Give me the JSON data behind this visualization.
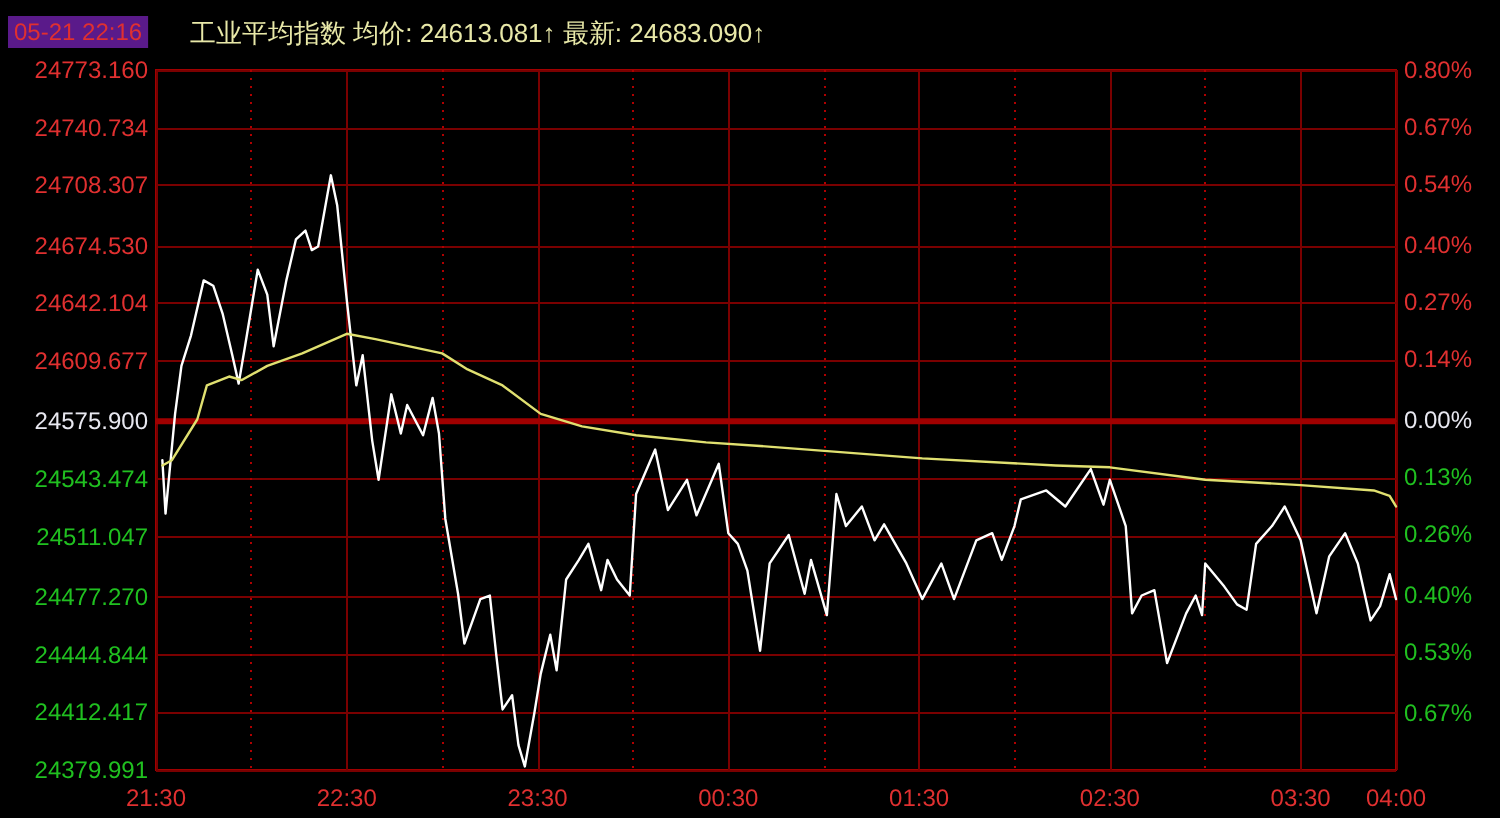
{
  "chart_data": {
    "type": "line",
    "title": "工业平均指数 均价: 24613.081↑ 最新: 24683.090↑",
    "annotations": [
      "05-21 22:16"
    ],
    "grid": true,
    "xlim": [
      "--05-21T21:30",
      "--05-22T04:00"
    ],
    "xticks": [
      {
        "value": "--05-21T21:30",
        "label": "21:30"
      },
      {
        "value": "--05-21T22:00",
        "label": null
      },
      {
        "value": "--05-21T22:30",
        "label": "22:30"
      },
      {
        "value": "--05-21T23:00",
        "label": null
      },
      {
        "value": "--05-21T23:30",
        "label": "23:30"
      },
      {
        "value": "--05-22T00:00",
        "label": null
      },
      {
        "value": "--05-22T00:30",
        "label": "00:30"
      },
      {
        "value": "--05-22T01:00",
        "label": null
      },
      {
        "value": "--05-22T01:30",
        "label": "01:30"
      },
      {
        "value": "--05-22T02:00",
        "label": null
      },
      {
        "value": "--05-22T02:30",
        "label": "02:30"
      },
      {
        "value": "--05-22T03:00",
        "label": null
      },
      {
        "value": "--05-22T03:30",
        "label": "03:30"
      },
      {
        "value": "--05-22T04:00",
        "label": "04:00"
      }
    ],
    "ylim": [
      24379.991,
      24773.16
    ],
    "yticks": [
      {
        "value": 24773.16,
        "label": "24773.160"
      },
      {
        "value": 24740.734,
        "label": "24740.734"
      },
      {
        "value": 24708.307,
        "label": "24708.307"
      },
      {
        "value": 24674.53,
        "label": "24674.530"
      },
      {
        "value": 24642.104,
        "label": "24642.104"
      },
      {
        "value": 24609.677,
        "label": "24609.677"
      },
      {
        "value": 24575.9,
        "label": "24575.900"
      },
      {
        "value": 24543.474,
        "label": "24543.474"
      },
      {
        "value": 24511.047,
        "label": "24511.047"
      },
      {
        "value": 24477.27,
        "label": "24477.270"
      },
      {
        "value": 24444.844,
        "label": "24444.844"
      },
      {
        "value": 24412.417,
        "label": "24412.417"
      },
      {
        "value": 24379.991,
        "label": "24379.991"
      }
    ],
    "y2lim": [
      -0.8,
      0.8
    ],
    "y2ticks": [
      {
        "value": 0.8,
        "label": "0.80%"
      },
      {
        "value": 0.67,
        "label": "0.67%"
      },
      {
        "value": 0.54,
        "label": "0.54%"
      },
      {
        "value": 0.4,
        "label": "0.40%"
      },
      {
        "value": 0.27,
        "label": "0.27%"
      },
      {
        "value": 0.14,
        "label": "0.14%"
      },
      {
        "value": 0,
        "label": "0.00%"
      },
      {
        "value": -0.13,
        "label": "0.13%"
      },
      {
        "value": -0.26,
        "label": "0.26%"
      },
      {
        "value": -0.4,
        "label": "0.40%"
      },
      {
        "value": -0.53,
        "label": "0.53%"
      },
      {
        "value": -0.67,
        "label": "0.67%"
      }
    ],
    "ref_lines": [
      {
        "axis": "y",
        "value": 24575.9,
        "color": "#a00000"
      }
    ],
    "series": [
      {
        "color": "#ffffff",
        "x": [
          "--05-21T21:32",
          "--05-21T21:33",
          "--05-21T21:36",
          "--05-21T21:38",
          "--05-21T21:41",
          "--05-21T21:45",
          "--05-21T21:48",
          "--05-21T21:51",
          "--05-21T21:54",
          "--05-21T21:56",
          "--05-21T21:58",
          "--05-21T22:02",
          "--05-21T22:05",
          "--05-21T22:07",
          "--05-21T22:11",
          "--05-21T22:14",
          "--05-21T22:17",
          "--05-21T22:19",
          "--05-21T22:21",
          "--05-21T22:25",
          "--05-21T22:27",
          "--05-21T22:30",
          "--05-21T22:33",
          "--05-21T22:35",
          "--05-21T22:38",
          "--05-21T22:40",
          "--05-21T22:44",
          "--05-21T22:47",
          "--05-21T22:49",
          "--05-21T22:54",
          "--05-21T22:57",
          "--05-21T22:59",
          "--05-21T23:01",
          "--05-21T23:05",
          "--05-21T23:07",
          "--05-21T23:12",
          "--05-21T23:15",
          "--05-21T23:17",
          "--05-21T23:19",
          "--05-21T23:22",
          "--05-21T23:24",
          "--05-21T23:26",
          "--05-21T23:29",
          "--05-21T23:31",
          "--05-21T23:34",
          "--05-21T23:36",
          "--05-21T23:39",
          "--05-21T23:43",
          "--05-21T23:46",
          "--05-21T23:50",
          "--05-21T23:52",
          "--05-21T23:55",
          "--05-21T23:59",
          "--05-22T00:01",
          "--05-22T00:07",
          "--05-22T00:11",
          "--05-22T00:17",
          "--05-22T00:20",
          "--05-22T00:27",
          "--05-22T00:30",
          "--05-22T00:33",
          "--05-22T00:36",
          "--05-22T00:40",
          "--05-22T00:43",
          "--05-22T00:49",
          "--05-22T00:54",
          "--05-22T00:56",
          "--05-22T01:01",
          "--05-22T01:04",
          "--05-22T01:07",
          "--05-22T01:12",
          "--05-22T01:16",
          "--05-22T01:19",
          "--05-22T01:26",
          "--05-22T01:31",
          "--05-22T01:37",
          "--05-22T01:41",
          "--05-22T01:48",
          "--05-22T01:53",
          "--05-22T01:56",
          "--05-22T02:00",
          "--05-22T02:02",
          "--05-22T02:10",
          "--05-22T02:16",
          "--05-22T02:24",
          "--05-22T02:28",
          "--05-22T02:30",
          "--05-22T02:35",
          "--05-22T02:37",
          "--05-22T02:40",
          "--05-22T02:44",
          "--05-22T02:48",
          "--05-22T02:54",
          "--05-22T02:57",
          "--05-22T02:59",
          "--05-22T03:00",
          "--05-22T03:06",
          "--05-22T03:10",
          "--05-22T03:13",
          "--05-22T03:16",
          "--05-22T03:21",
          "--05-22T03:25",
          "--05-22T03:30",
          "--05-22T03:35",
          "--05-22T03:39",
          "--05-22T03:44",
          "--05-22T03:48",
          "--05-22T03:52",
          "--05-22T03:55",
          "--05-22T03:58",
          "--05-22T04:00"
        ],
        "values": [
          24554,
          24524,
          24580,
          24607,
          24624,
          24655,
          24652,
          24636,
          24613,
          24597,
          24618,
          24661,
          24647,
          24618,
          24655,
          24678,
          24683,
          24672,
          24674,
          24714,
          24697,
          24644,
          24596,
          24613,
          24565,
          24543,
          24591,
          24569,
          24585,
          24568,
          24589,
          24569,
          24521,
          24479,
          24451,
          24476,
          24478,
          24445,
          24414,
          24422,
          24394,
          24382,
          24412,
          24434,
          24456,
          24436,
          24487,
          24498,
          24507,
          24481,
          24498,
          24487,
          24478,
          24535,
          24560,
          24526,
          24543,
          24523,
          24552,
          24513,
          24507,
          24492,
          24447,
          24496,
          24512,
          24479,
          24498,
          24467,
          24535,
          24517,
          24528,
          24509,
          24518,
          24496,
          24476,
          24496,
          24476,
          24509,
          24513,
          24498,
          24517,
          24532,
          24537,
          24528,
          24549,
          24529,
          24543,
          24517,
          24468,
          24478,
          24481,
          24440,
          24468,
          24478,
          24467,
          24496,
          24483,
          24473,
          24470,
          24507,
          24517,
          24528,
          24509,
          24468,
          24500,
          24513,
          24496,
          24464,
          24472,
          24490,
          24476
        ]
      },
      {
        "color": "#e0e070",
        "x": [
          "--05-21T21:32",
          "--05-21T21:35",
          "--05-21T21:43",
          "--05-21T21:46",
          "--05-21T21:53",
          "--05-21T21:57",
          "--05-21T22:05",
          "--05-21T22:16",
          "--05-21T22:30",
          "--05-21T22:39",
          "--05-21T23:00",
          "--05-21T23:08",
          "--05-21T23:19",
          "--05-21T23:31",
          "--05-21T23:44",
          "--05-22T00:01",
          "--05-22T00:23",
          "--05-22T00:40",
          "--05-22T01:31",
          "--05-22T02:13",
          "--05-22T02:30",
          "--05-22T03:00",
          "--05-22T03:30",
          "--05-22T03:53",
          "--05-22T03:58",
          "--05-22T04:00"
        ],
        "values": [
          24551,
          24554,
          24577,
          24596,
          24601,
          24599,
          24607,
          24614,
          24625,
          24622,
          24614,
          24605,
          24596,
          24580,
          24573,
          24568,
          24564,
          24562,
          24555,
          24551,
          24550,
          24543,
          24540,
          24537,
          24534,
          24528
        ]
      }
    ]
  }
}
